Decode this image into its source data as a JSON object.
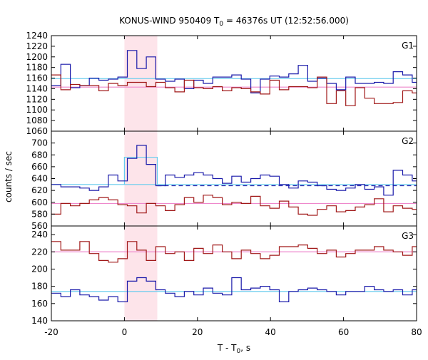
{
  "chart_data": {
    "type": "line",
    "title": "KONUS-WIND 950409 T",
    "title_sub": "0",
    "title_rest": " = 46376s UT (12:52:56.000)",
    "xlabel": "T - T",
    "xlabel_sub": "0",
    "xlabel_rest": ", s",
    "ylabel": "counts / sec",
    "xlim": [
      -20,
      80
    ],
    "x_ticks": [
      -20,
      0,
      20,
      40,
      60,
      80
    ],
    "highlight_interval": [
      0,
      9
    ],
    "colors": {
      "blue": "#1a1aaa",
      "red": "#a01818",
      "cyan": "#66ccee",
      "pink": "#ee88cc",
      "shade": "#fde4ea",
      "dashed": "#1a1aaa"
    },
    "bin_edges": [
      -20,
      -17.4,
      -14.8,
      -12.2,
      -9.6,
      -7,
      -4.4,
      -1.8,
      0.8,
      3.4,
      6,
      8.6,
      11.2,
      13.8,
      16.4,
      19,
      21.6,
      24.2,
      26.8,
      29.4,
      32,
      34.6,
      37.2,
      39.8,
      42.4,
      45,
      47.6,
      50.2,
      52.8,
      55.4,
      58,
      60.6,
      63.2,
      65.8,
      68.4,
      71,
      73.6,
      76.2,
      78.8,
      80
    ],
    "panels": [
      {
        "label": "G1",
        "ylim": [
          1060,
          1240
        ],
        "y_ticks": [
          1060,
          1080,
          1100,
          1120,
          1140,
          1160,
          1180,
          1200,
          1220,
          1240
        ],
        "series": [
          {
            "color": "blue",
            "values": [
              1146,
              1186,
              1142,
              1146,
              1160,
              1156,
              1158,
              1162,
              1212,
              1178,
              1200,
              1158,
              1154,
              1158,
              1140,
              1156,
              1150,
              1162,
              1162,
              1166,
              1158,
              1132,
              1158,
              1164,
              1162,
              1168,
              1184,
              1154,
              1160,
              1150,
              1138,
              1162,
              1150,
              1150,
              1152,
              1150,
              1172,
              1166,
              1152
            ]
          },
          {
            "color": "red",
            "values": [
              1166,
              1138,
              1148,
              1146,
              1146,
              1136,
              1150,
              1146,
              1152,
              1152,
              1144,
              1152,
              1142,
              1134,
              1156,
              1142,
              1140,
              1144,
              1136,
              1142,
              1140,
              1134,
              1130,
              1156,
              1138,
              1144,
              1144,
              1142,
              1162,
              1112,
              1136,
              1108,
              1142,
              1122,
              1112,
              1112,
              1114,
              1136,
              1132
            ]
          }
        ],
        "ref_lines": [
          {
            "color": "cyan",
            "y": 1159,
            "dashed": false
          },
          {
            "color": "pink",
            "y": 1143,
            "dashed": false
          }
        ]
      },
      {
        "label": "G2",
        "ylim": [
          560,
          720
        ],
        "y_ticks": [
          560,
          580,
          600,
          620,
          640,
          660,
          680,
          700
        ],
        "series": [
          {
            "color": "blue",
            "values": [
              630,
              626,
              626,
              624,
              620,
              626,
              646,
              636,
              674,
              696,
              664,
              628,
              646,
              642,
              646,
              650,
              646,
              640,
              632,
              644,
              634,
              640,
              646,
              644,
              630,
              624,
              636,
              634,
              628,
              622,
              620,
              624,
              630,
              622,
              626,
              612,
              654,
              646,
              636
            ]
          },
          {
            "color": "red",
            "values": [
              580,
              598,
              594,
              598,
              604,
              608,
              604,
              596,
              594,
              582,
              598,
              594,
              586,
              596,
              608,
              600,
              612,
              608,
              596,
              600,
              598,
              610,
              594,
              590,
              602,
              592,
              580,
              578,
              588,
              594,
              584,
              586,
              592,
              596,
              606,
              584,
              594,
              590,
              588
            ]
          }
        ],
        "ref_lines": [
          {
            "color": "cyan",
            "y": 630,
            "dashed": false
          },
          {
            "color": "dashed",
            "y": 628,
            "dashed": true,
            "x0": 9
          },
          {
            "color": "pink",
            "y": 598,
            "dashed": false
          }
        ],
        "step_overlay": {
          "color": "cyan",
          "x0": 0,
          "x1": 9,
          "y": 676
        }
      },
      {
        "label": "G3",
        "ylim": [
          140,
          250
        ],
        "y_ticks": [
          140,
          160,
          180,
          200,
          220,
          240
        ],
        "series": [
          {
            "color": "red",
            "values": [
              232,
              222,
              222,
              232,
              218,
              210,
              208,
              212,
              232,
              222,
              210,
              226,
              218,
              220,
              210,
              224,
              218,
              228,
              220,
              212,
              222,
              218,
              212,
              216,
              226,
              226,
              228,
              224,
              218,
              222,
              214,
              218,
              222,
              222,
              226,
              222,
              220,
              216,
              226
            ]
          },
          {
            "color": "blue",
            "values": [
              172,
              168,
              176,
              170,
              168,
              164,
              168,
              162,
              186,
              190,
              186,
              176,
              172,
              168,
              174,
              170,
              178,
              172,
              170,
              190,
              176,
              178,
              180,
              176,
              162,
              174,
              176,
              178,
              176,
              174,
              170,
              174,
              174,
              180,
              176,
              174,
              176,
              170,
              176
            ]
          }
        ],
        "ref_lines": [
          {
            "color": "pink",
            "y": 220,
            "dashed": false
          },
          {
            "color": "cyan",
            "y": 174,
            "dashed": false
          }
        ]
      }
    ]
  }
}
